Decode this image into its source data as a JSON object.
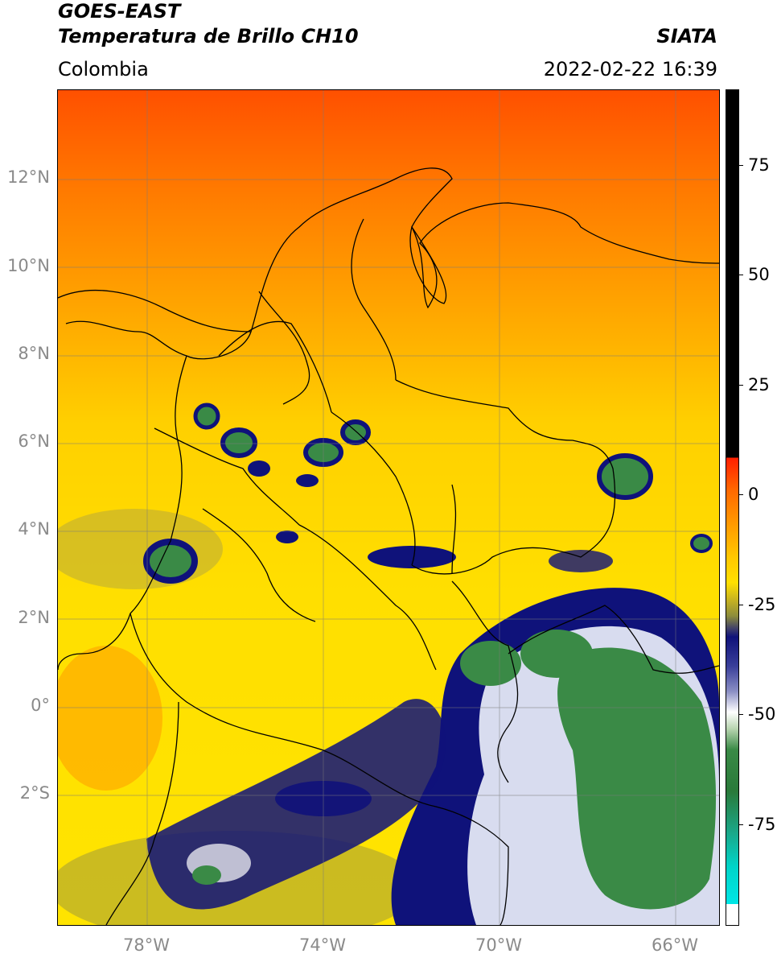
{
  "header": {
    "satellite": "GOES-EAST",
    "product": "Temperatura de Brillo CH10",
    "region": "Colombia",
    "source": "SIATA",
    "datetime": "2022-02-22 16:39"
  },
  "map": {
    "lat_labels": [
      "12°N",
      "10°N",
      "8°N",
      "6°N",
      "4°N",
      "2°N",
      "0°",
      "2°S"
    ],
    "lon_labels": [
      "78°W",
      "74°W",
      "70°W",
      "66°W"
    ],
    "gridlines": true
  },
  "colorbar": {
    "tick_labels": [
      "75",
      "50",
      "25",
      "0",
      "-25",
      "-50",
      "-75"
    ],
    "colors": {
      "black": "#000000",
      "red": "#ff2a00",
      "orange": "#ff9a00",
      "yellow": "#ffdc00",
      "olive": "#8c8c3c",
      "navy": "#0f127a",
      "white": "#ffffff",
      "green": "#3a8a46",
      "cyan": "#00e0e0"
    }
  }
}
